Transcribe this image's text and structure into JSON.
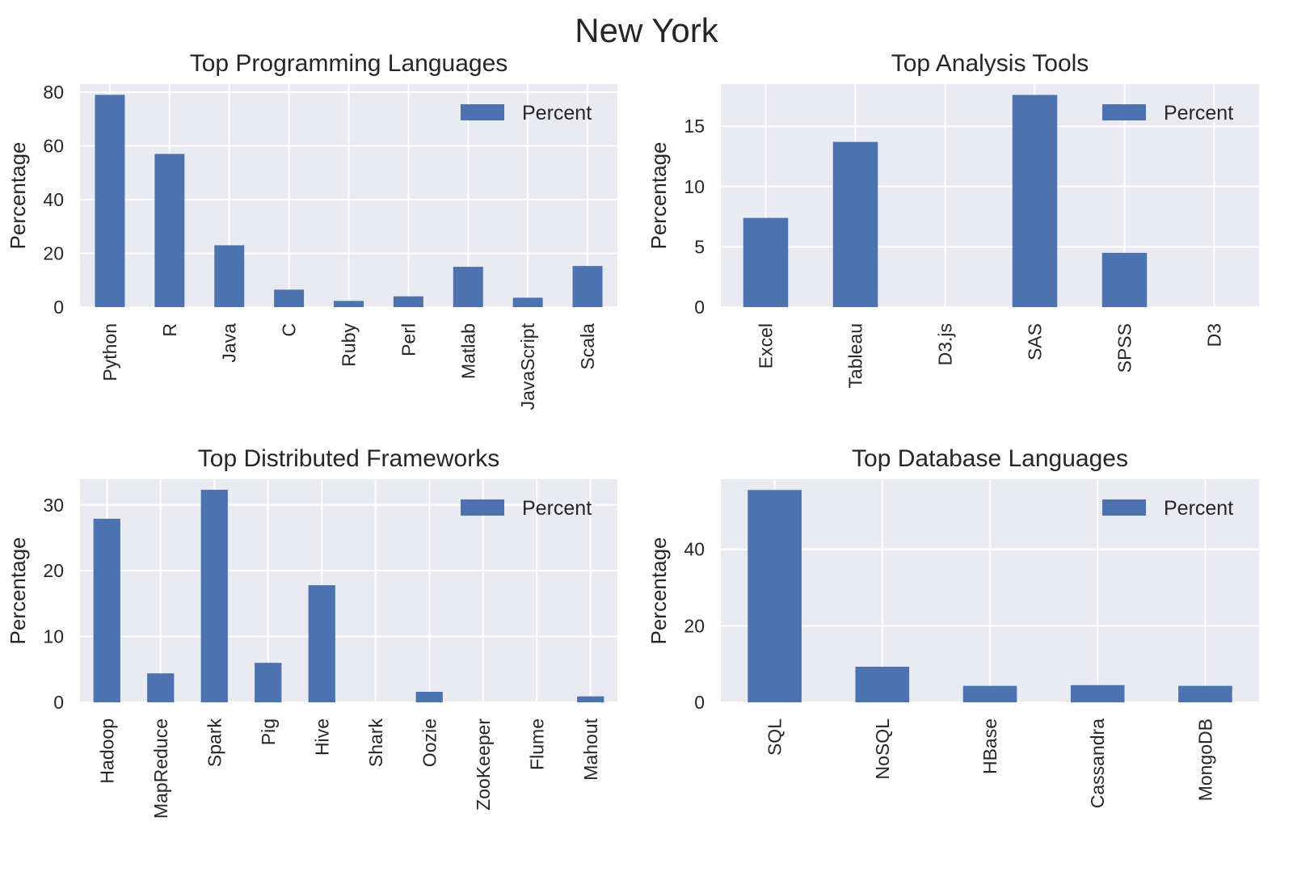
{
  "figure": {
    "title": "New York"
  },
  "colors": {
    "bar": "#4c72b0",
    "panel_bg": "#eaeaf2",
    "grid": "#ffffff",
    "text": "#262626"
  },
  "chart_data": [
    {
      "type": "bar",
      "title": "Top Programming Languages",
      "ylabel": "Percentage",
      "xlabel": "",
      "categories": [
        "Python",
        "R",
        "Java",
        "C",
        "Ruby",
        "Perl",
        "Matlab",
        "JavaScript",
        "Scala"
      ],
      "series": [
        {
          "name": "Percent",
          "values": [
            79.0,
            57.0,
            23.0,
            6.5,
            2.3,
            4.0,
            15.0,
            3.5,
            15.3
          ]
        }
      ],
      "ylim": [
        0,
        83
      ],
      "yticks": [
        0,
        20,
        40,
        60,
        80
      ],
      "legend": "upper right",
      "grid": true
    },
    {
      "type": "bar",
      "title": "Top Analysis Tools",
      "ylabel": "Percentage",
      "xlabel": "",
      "categories": [
        "Excel",
        "Tableau",
        "D3.js",
        "SAS",
        "SPSS",
        "D3"
      ],
      "series": [
        {
          "name": "Percent",
          "values": [
            7.4,
            13.7,
            0,
            17.6,
            4.5,
            0
          ]
        }
      ],
      "ylim": [
        0,
        18.5
      ],
      "yticks": [
        0,
        5,
        10,
        15
      ],
      "legend": "upper right",
      "grid": true
    },
    {
      "type": "bar",
      "title": "Top Distributed Frameworks",
      "ylabel": "Percentage",
      "xlabel": "",
      "categories": [
        "Hadoop",
        "MapReduce",
        "Spark",
        "Pig",
        "Hive",
        "Shark",
        "Oozie",
        "ZooKeeper",
        "Flume",
        "Mahout"
      ],
      "series": [
        {
          "name": "Percent",
          "values": [
            27.9,
            4.4,
            32.3,
            6.0,
            17.8,
            0,
            1.6,
            0,
            0,
            0.9
          ]
        }
      ],
      "ylim": [
        0,
        33.9
      ],
      "yticks": [
        0,
        10,
        20,
        30
      ],
      "legend": "upper right",
      "grid": true
    },
    {
      "type": "bar",
      "title": "Top Database Languages",
      "ylabel": "Percentage",
      "xlabel": "",
      "categories": [
        "SQL",
        "NoSQL",
        "HBase",
        "Cassandra",
        "MongoDB"
      ],
      "series": [
        {
          "name": "Percent",
          "values": [
            55.5,
            9.3,
            4.3,
            4.5,
            4.3
          ]
        }
      ],
      "ylim": [
        0,
        58.3
      ],
      "yticks": [
        0,
        20,
        40
      ],
      "legend": "upper right",
      "grid": true
    }
  ]
}
